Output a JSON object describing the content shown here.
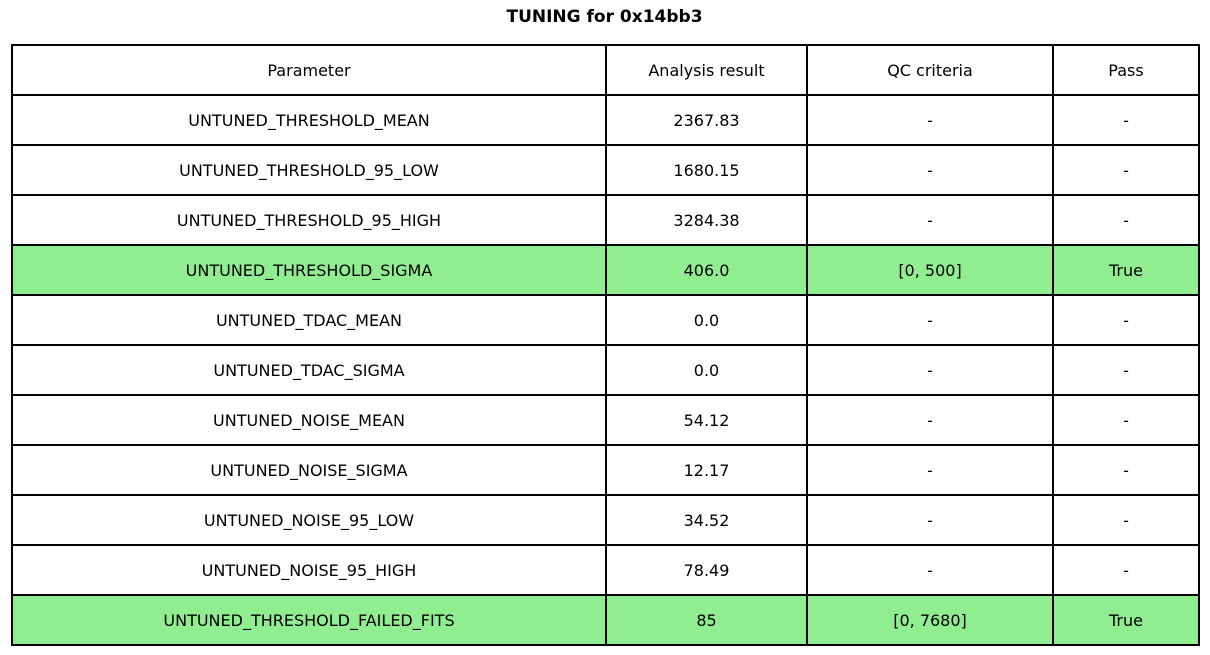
{
  "title": "TUNING for 0x14bb3",
  "chart_data": {
    "type": "table",
    "title": "TUNING for 0x14bb3",
    "columns": [
      "Parameter",
      "Analysis result",
      "QC criteria",
      "Pass"
    ],
    "rows": [
      {
        "parameter": "UNTUNED_THRESHOLD_MEAN",
        "result": "2367.83",
        "criteria": "-",
        "pass": "-",
        "highlight": false
      },
      {
        "parameter": "UNTUNED_THRESHOLD_95_LOW",
        "result": "1680.15",
        "criteria": "-",
        "pass": "-",
        "highlight": false
      },
      {
        "parameter": "UNTUNED_THRESHOLD_95_HIGH",
        "result": "3284.38",
        "criteria": "-",
        "pass": "-",
        "highlight": false
      },
      {
        "parameter": "UNTUNED_THRESHOLD_SIGMA",
        "result": "406.0",
        "criteria": "[0, 500]",
        "pass": "True",
        "highlight": true
      },
      {
        "parameter": "UNTUNED_TDAC_MEAN",
        "result": "0.0",
        "criteria": "-",
        "pass": "-",
        "highlight": false
      },
      {
        "parameter": "UNTUNED_TDAC_SIGMA",
        "result": "0.0",
        "criteria": "-",
        "pass": "-",
        "highlight": false
      },
      {
        "parameter": "UNTUNED_NOISE_MEAN",
        "result": "54.12",
        "criteria": "-",
        "pass": "-",
        "highlight": false
      },
      {
        "parameter": "UNTUNED_NOISE_SIGMA",
        "result": "12.17",
        "criteria": "-",
        "pass": "-",
        "highlight": false
      },
      {
        "parameter": "UNTUNED_NOISE_95_LOW",
        "result": "34.52",
        "criteria": "-",
        "pass": "-",
        "highlight": false
      },
      {
        "parameter": "UNTUNED_NOISE_95_HIGH",
        "result": "78.49",
        "criteria": "-",
        "pass": "-",
        "highlight": false
      },
      {
        "parameter": "UNTUNED_THRESHOLD_FAILED_FITS",
        "result": "85",
        "criteria": "[0, 7680]",
        "pass": "True",
        "highlight": true
      }
    ],
    "layout": {
      "highlight_color": "#90EE90",
      "border_color": "#000000",
      "background": "#ffffff",
      "grid": true,
      "text_align": "center"
    }
  }
}
